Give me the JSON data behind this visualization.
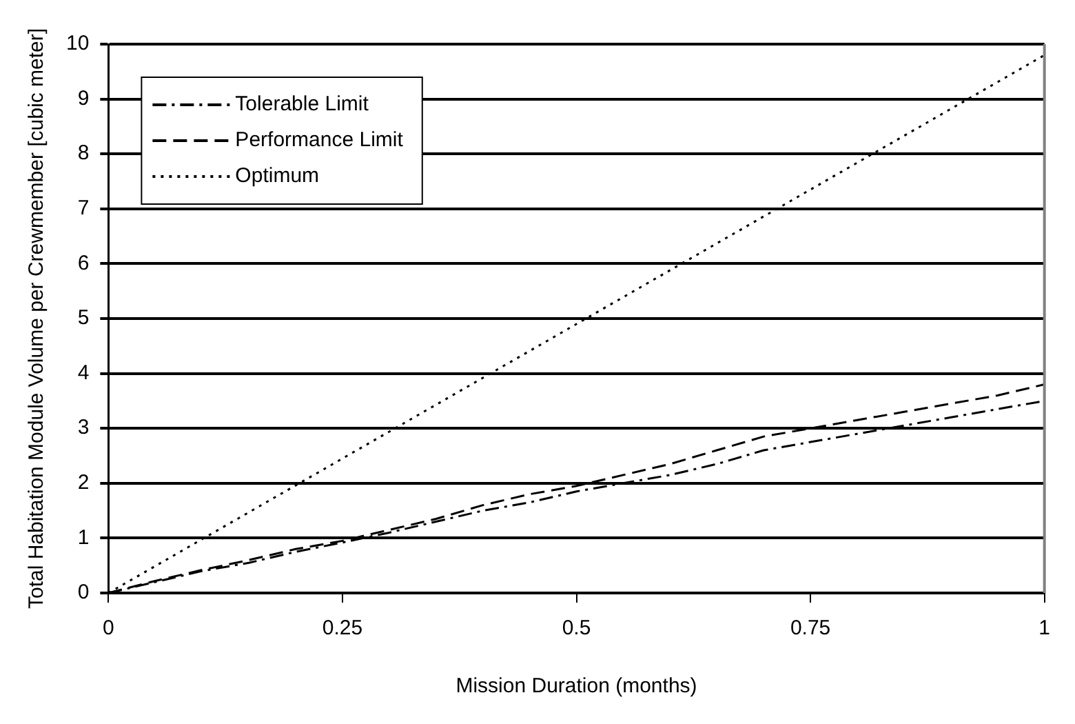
{
  "chart_data": {
    "type": "line",
    "xlabel": "Mission Duration (months)",
    "ylabel": "Total Habitation Module Volume per Crewmember [cubic meter]",
    "xlim": [
      0,
      1
    ],
    "xticks": [
      0,
      0.25,
      0.5,
      0.75,
      1
    ],
    "ylim": [
      0,
      10
    ],
    "yticks": [
      0,
      1,
      2,
      3,
      4,
      5,
      6,
      7,
      8,
      9,
      10
    ],
    "grid": "y",
    "legend": "top left",
    "marker": "none",
    "series": [
      {
        "name": "Tolerable Limit",
        "color": "#000000",
        "line_style": "dashdot",
        "x": [
          0,
          0.05,
          0.1,
          0.15,
          0.2,
          0.25,
          0.3,
          0.35,
          0.4,
          0.45,
          0.5,
          0.55,
          0.6,
          0.65,
          0.7,
          0.75,
          0.8,
          0.85,
          0.9,
          0.95,
          1
        ],
        "values": [
          0,
          0.2,
          0.4,
          0.55,
          0.75,
          0.92,
          1.1,
          1.3,
          1.5,
          1.65,
          1.85,
          2.0,
          2.15,
          2.35,
          2.6,
          2.75,
          2.9,
          3.05,
          3.2,
          3.35,
          3.5
        ]
      },
      {
        "name": "Performance Limit",
        "color": "#000000",
        "line_style": "dashed",
        "x": [
          0,
          0.05,
          0.1,
          0.15,
          0.2,
          0.25,
          0.3,
          0.35,
          0.4,
          0.45,
          0.5,
          0.55,
          0.6,
          0.65,
          0.7,
          0.75,
          0.8,
          0.85,
          0.9,
          0.95,
          1
        ],
        "values": [
          0,
          0.22,
          0.42,
          0.6,
          0.8,
          0.95,
          1.15,
          1.35,
          1.6,
          1.8,
          1.95,
          2.15,
          2.35,
          2.6,
          2.85,
          3.0,
          3.15,
          3.3,
          3.45,
          3.6,
          3.8
        ]
      },
      {
        "name": "Optimum",
        "color": "#000000",
        "line_style": "dotted",
        "x": [
          0,
          1
        ],
        "values": [
          0,
          9.8
        ]
      }
    ]
  }
}
